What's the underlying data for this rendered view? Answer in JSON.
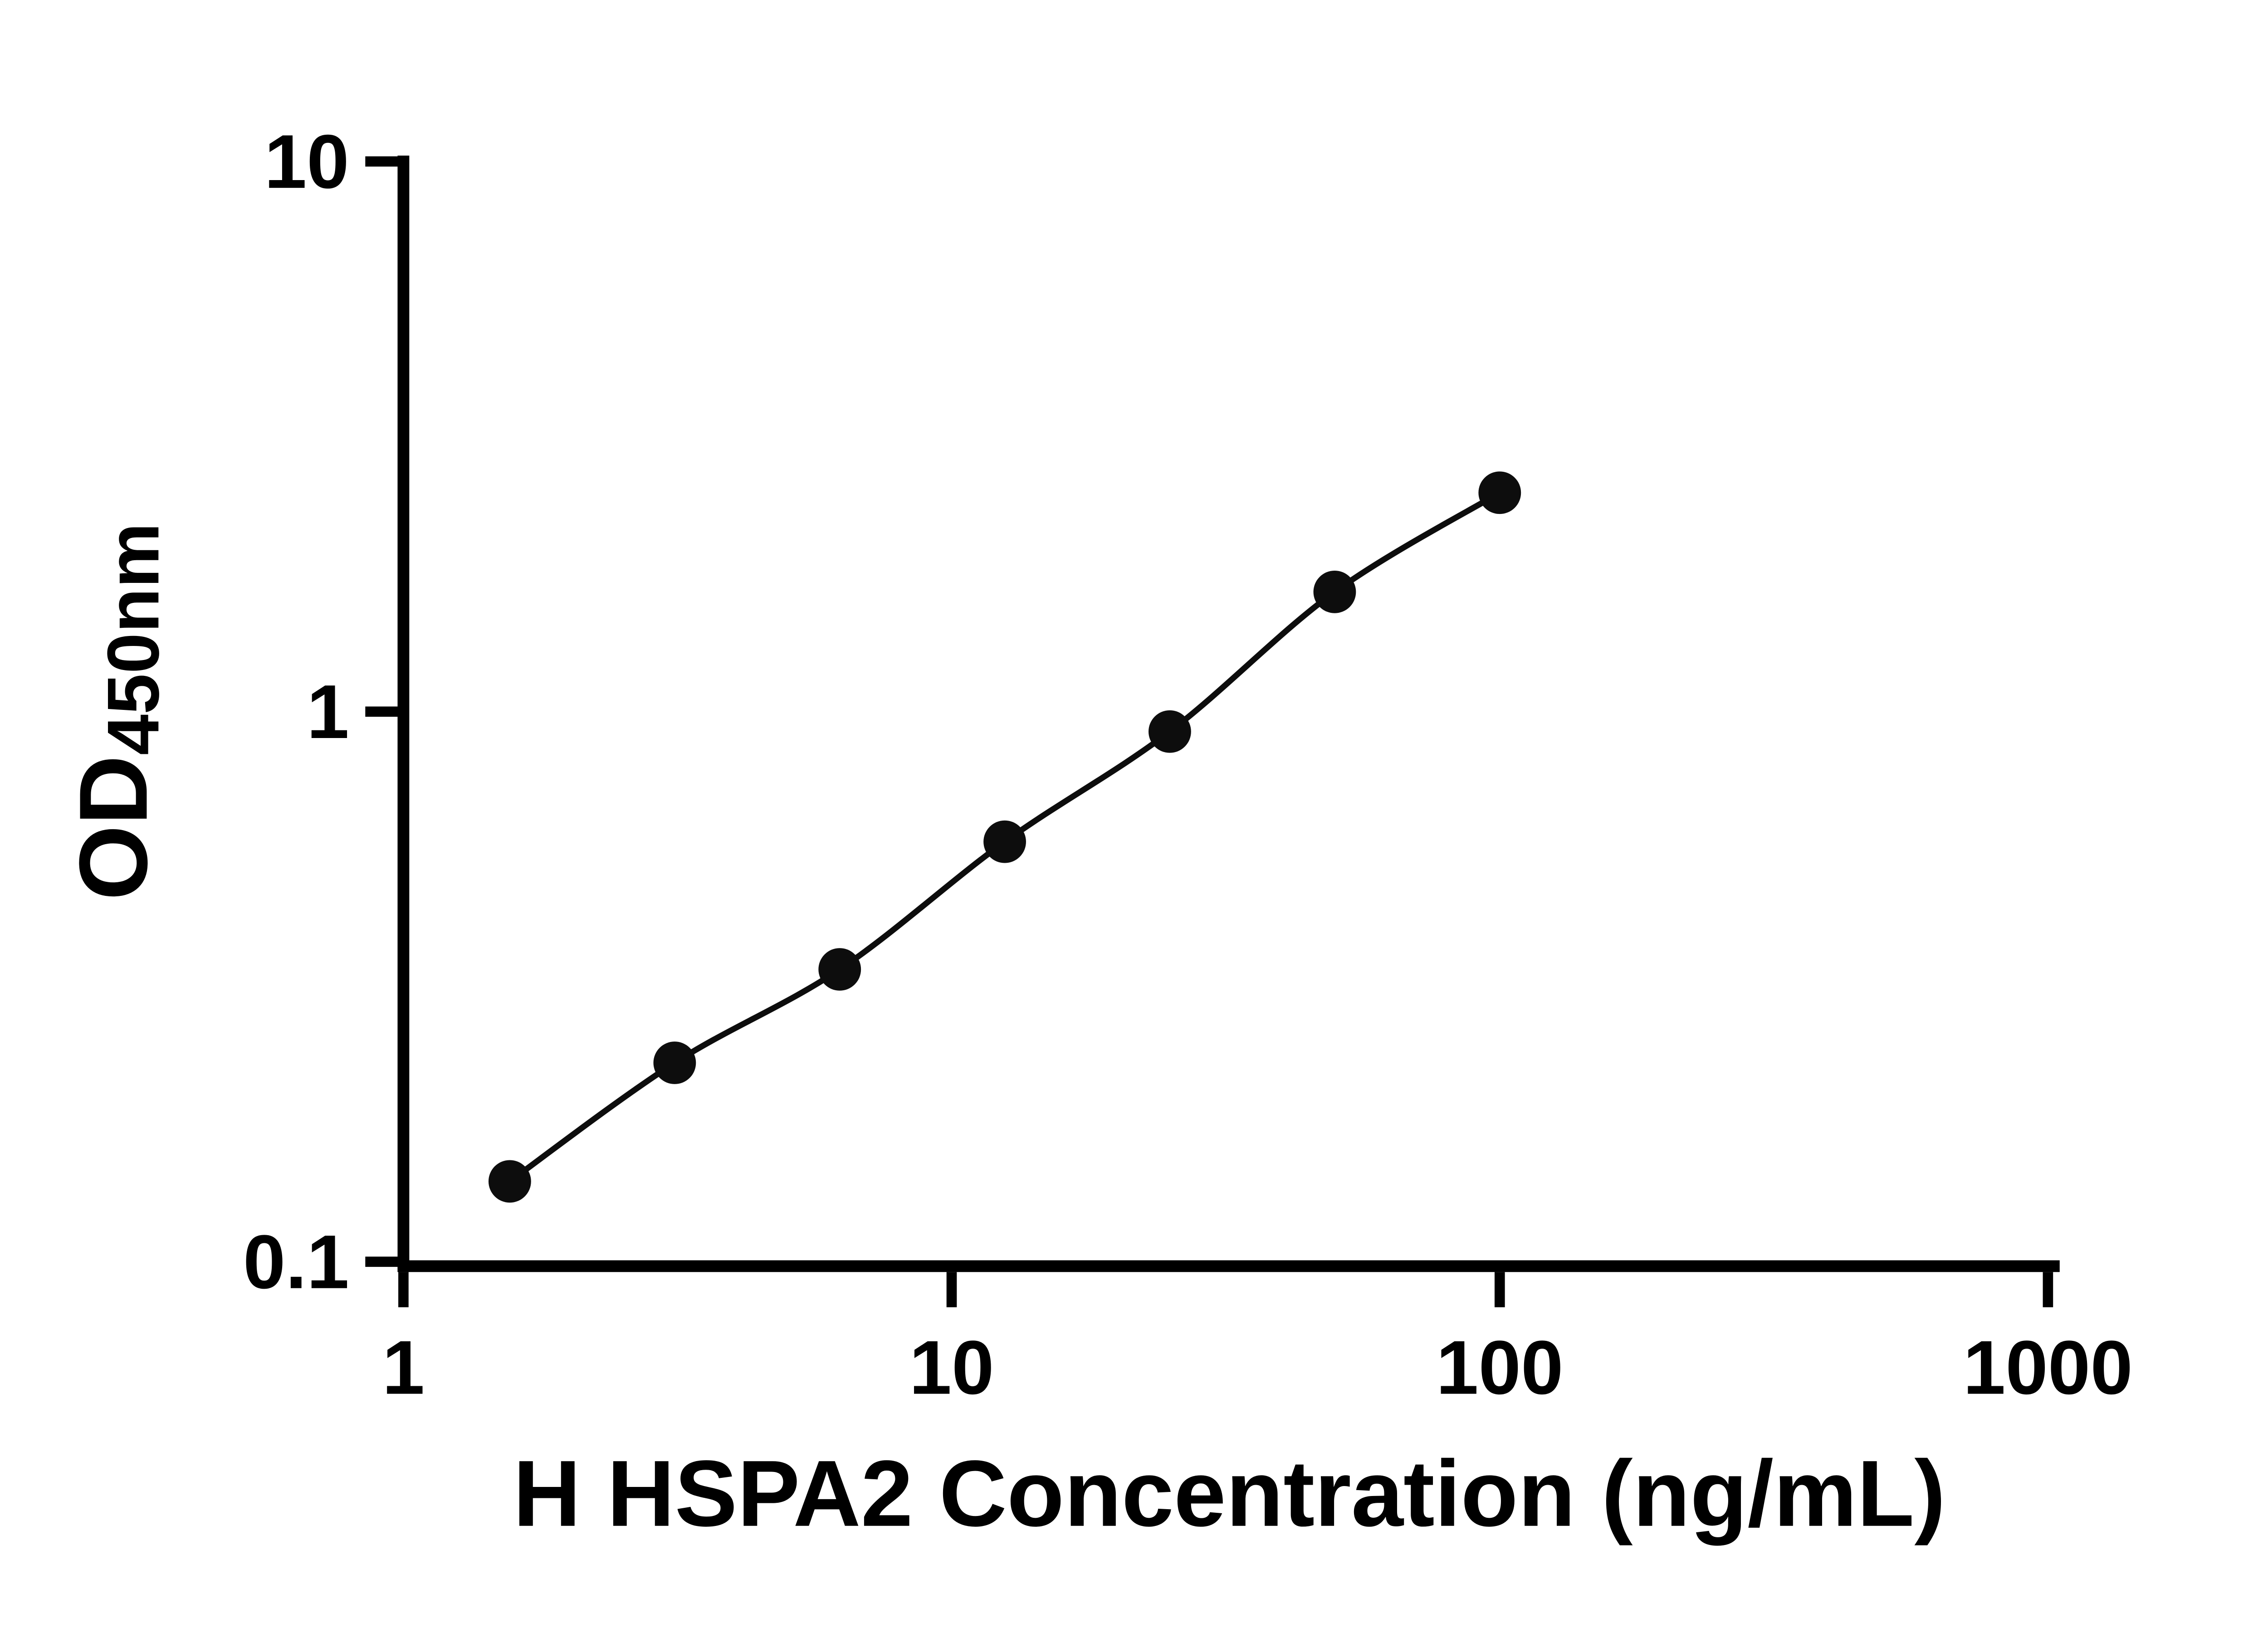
{
  "chart_data": {
    "type": "scatter",
    "title": "",
    "xlabel": "H HSPA2 Concentration (ng/mL)",
    "ylabel_main": "OD",
    "ylabel_sub": "450nm",
    "x_scale": "log",
    "y_scale": "log",
    "xlim": [
      1,
      1000
    ],
    "ylim": [
      0.1,
      10
    ],
    "x_ticks": [
      1,
      10,
      100,
      1000
    ],
    "x_tick_labels": [
      "1",
      "10",
      "100",
      "1000"
    ],
    "y_ticks": [
      10,
      1,
      0.1
    ],
    "y_tick_labels": [
      "10",
      "1",
      "0.1"
    ],
    "legend": null,
    "grid": false,
    "marker_color": "#0d0d0d",
    "line_color": "#0d0d0d",
    "points": [
      {
        "x": 1.563,
        "y": 0.14
      },
      {
        "x": 3.125,
        "y": 0.23
      },
      {
        "x": 6.25,
        "y": 0.34
      },
      {
        "x": 12.5,
        "y": 0.58
      },
      {
        "x": 25,
        "y": 0.92
      },
      {
        "x": 50,
        "y": 1.65
      },
      {
        "x": 100,
        "y": 2.5
      }
    ]
  }
}
